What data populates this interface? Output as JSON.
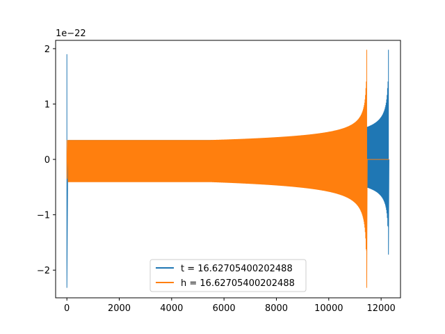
{
  "chart_data": {
    "type": "line",
    "title": "",
    "xlabel": "",
    "ylabel": "",
    "xlim": [
      -430,
      12740
    ],
    "ylim": [
      -2.5,
      2.15
    ],
    "y_offset_label": "1e−22",
    "x_ticks": [
      0,
      2000,
      4000,
      6000,
      8000,
      10000,
      12000
    ],
    "x_tick_labels": [
      "0",
      "2000",
      "4000",
      "6000",
      "8000",
      "10000",
      "12000"
    ],
    "y_ticks": [
      -2,
      -1,
      0,
      1,
      2
    ],
    "y_tick_labels": [
      "−2",
      "−1",
      "0",
      "1",
      "2"
    ],
    "grid": false,
    "legend_position": "lower-center",
    "series": [
      {
        "name": "t = 16.62705400202488",
        "color": "#1f77b4",
        "spike_at": 0,
        "spike_max": 1.9,
        "spike_min": -2.32,
        "start_amplitude": 0.35,
        "chirp_end_x": 12280,
        "chirp_peak_max": 1.98,
        "chirp_peak_min": -1.72,
        "tail_end_x": 12300
      },
      {
        "name": "h = 16.62705400202488",
        "color": "#ff7f0e",
        "spike_at": 0,
        "spike_max": 0.35,
        "spike_min": -0.35,
        "start_amplitude": 0.35,
        "chirp_end_x": 11450,
        "chirp_peak_max": 1.98,
        "chirp_peak_min": -2.32,
        "tail_end_x": 12300
      }
    ]
  }
}
